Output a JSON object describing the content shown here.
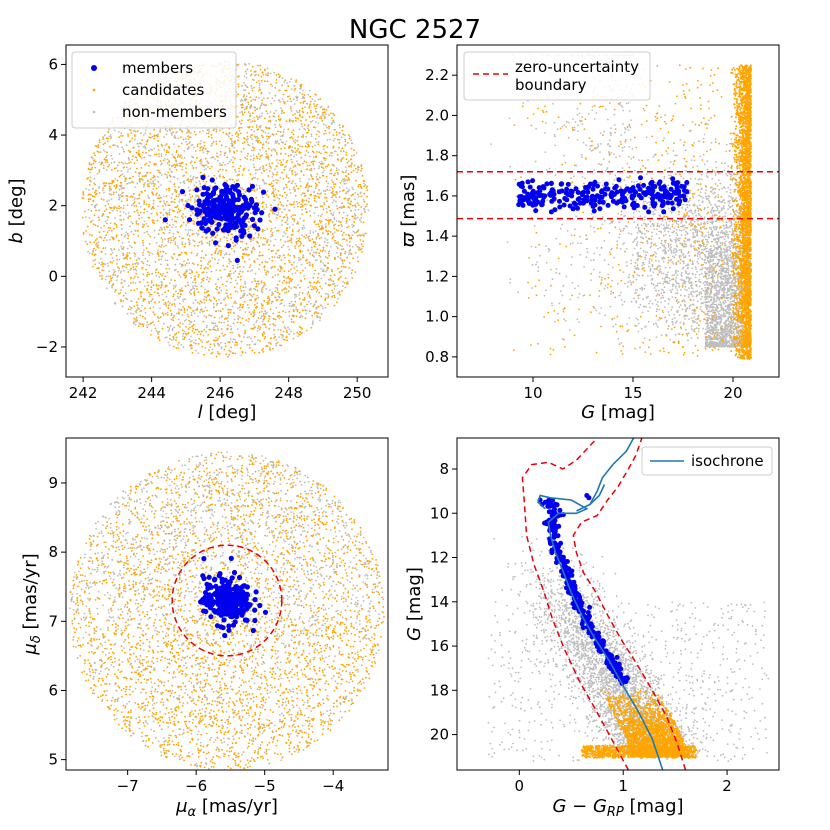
{
  "figure_title": "NGC 2527",
  "colors": {
    "members": "#0000ee",
    "candidates": "#ffa500",
    "non_members": "#bdbdbd",
    "boundary": "#e8000b",
    "isochrone": "#1f77b4"
  },
  "chart_data": [
    {
      "id": "position",
      "type": "scatter",
      "xlabel": "l [deg]",
      "ylabel": "b [deg]",
      "xlim": [
        241.5,
        250.9
      ],
      "ylim": [
        -2.85,
        6.55
      ],
      "xticks": [
        242,
        244,
        246,
        248,
        250
      ],
      "yticks": [
        -2,
        0,
        2,
        4,
        6
      ],
      "ytick_labels": [
        "−2",
        "0",
        "2",
        "4",
        "6"
      ],
      "legend": {
        "position": "top-left",
        "entries": [
          "members",
          "candidates",
          "non-members"
        ]
      },
      "field_center": [
        246.15,
        1.9
      ],
      "field_radius_deg": 4.2,
      "members_center": [
        246.15,
        1.9
      ],
      "members_spread": [
        0.45,
        0.35
      ],
      "members_count": 230,
      "members_outliers": [
        [
          244.4,
          1.6
        ],
        [
          247.6,
          1.9
        ],
        [
          246.5,
          0.45
        ],
        [
          245.5,
          2.8
        ],
        [
          244.9,
          2.4
        ]
      ]
    },
    {
      "id": "parallax",
      "type": "scatter",
      "xlabel": "G [mag]",
      "ylabel": "ϖ [mas]",
      "xlim": [
        6.2,
        22.3
      ],
      "ylim": [
        0.7,
        2.35
      ],
      "xticks": [
        10,
        15,
        20
      ],
      "yticks": [
        0.8,
        1.0,
        1.2,
        1.4,
        1.6,
        1.8,
        2.0,
        2.2
      ],
      "ytick_labels": [
        "0.8",
        "1.0",
        "1.2",
        "1.4",
        "1.6",
        "1.8",
        "2.0",
        "2.2"
      ],
      "legend": {
        "position": "top-left",
        "entries": [
          "zero-uncertainty",
          "boundary"
        ]
      },
      "boundary_parallax": [
        1.72,
        1.487
      ],
      "members_g_range": [
        9.2,
        17.7
      ],
      "members_parallax_center": 1.6,
      "members_count": 260
    },
    {
      "id": "proper_motion",
      "type": "scatter",
      "xlabel": "μα [mas/yr]",
      "ylabel": "μδ [mas/yr]",
      "xlim": [
        -7.9,
        -3.2
      ],
      "ylim": [
        4.85,
        9.65
      ],
      "xticks": [
        -7,
        -6,
        -5,
        -4
      ],
      "xtick_labels": [
        "−7",
        "−6",
        "−5",
        "−4"
      ],
      "yticks": [
        5,
        6,
        7,
        8,
        9
      ],
      "ytick_labels": [
        "5",
        "6",
        "7",
        "8",
        "9"
      ],
      "field_center": [
        -5.55,
        7.15
      ],
      "field_radius": 2.3,
      "boundary_circle": {
        "center": [
          -5.55,
          7.3
        ],
        "radius": 0.8
      },
      "members_center": [
        -5.55,
        7.3
      ],
      "members_spread": [
        0.17,
        0.17
      ],
      "members_count": 260
    },
    {
      "id": "cmd",
      "type": "scatter",
      "xlabel": "G − G_RP [mag]",
      "ylabel": "G [mag]",
      "xlim": [
        -0.6,
        2.5
      ],
      "ylim": [
        21.6,
        6.6
      ],
      "xticks": [
        0,
        1,
        2
      ],
      "yticks": [
        8,
        10,
        12,
        14,
        16,
        18,
        20
      ],
      "ytick_labels": [
        "8",
        "10",
        "12",
        "14",
        "16",
        "18",
        "20"
      ],
      "legend": {
        "position": "top-right",
        "entries": [
          "isochrone"
        ]
      },
      "isochrone": [
        [
          0.25,
          9.8
        ],
        [
          0.18,
          9.5
        ],
        [
          0.2,
          9.2
        ],
        [
          0.3,
          9.3
        ],
        [
          0.5,
          9.4
        ],
        [
          0.65,
          9.8
        ],
        [
          0.55,
          10.0
        ],
        [
          0.38,
          10.0
        ],
        [
          0.28,
          10.4
        ],
        [
          0.3,
          11.0
        ],
        [
          0.35,
          11.8
        ],
        [
          0.42,
          12.6
        ],
        [
          0.5,
          13.6
        ],
        [
          0.6,
          14.6
        ],
        [
          0.72,
          15.6
        ],
        [
          0.87,
          16.7
        ],
        [
          1.0,
          17.8
        ],
        [
          1.15,
          19.0
        ],
        [
          1.28,
          20.2
        ],
        [
          1.38,
          21.6
        ]
      ],
      "isochrone_giant": [
        [
          0.55,
          9.9
        ],
        [
          0.68,
          9.6
        ],
        [
          0.75,
          9.0
        ],
        [
          0.8,
          8.4
        ],
        [
          0.9,
          7.8
        ],
        [
          1.03,
          7.2
        ],
        [
          1.1,
          6.6
        ]
      ],
      "isochrone_rgb": [
        [
          0.68,
          9.6
        ],
        [
          0.77,
          9.2
        ],
        [
          0.82,
          8.7
        ]
      ],
      "boundary_left": [
        [
          1.05,
          21.6
        ],
        [
          0.9,
          20.3
        ],
        [
          0.75,
          19.0
        ],
        [
          0.58,
          17.6
        ],
        [
          0.44,
          16.2
        ],
        [
          0.32,
          14.8
        ],
        [
          0.24,
          13.6
        ],
        [
          0.14,
          12.3
        ],
        [
          0.07,
          11.0
        ],
        [
          0.05,
          9.6
        ],
        [
          0.03,
          8.4
        ],
        [
          0.12,
          7.8
        ],
        [
          0.28,
          7.7
        ],
        [
          0.42,
          8.0
        ],
        [
          0.55,
          7.6
        ],
        [
          0.65,
          7.1
        ],
        [
          0.75,
          6.6
        ]
      ],
      "boundary_right": [
        [
          1.6,
          21.6
        ],
        [
          1.52,
          20.4
        ],
        [
          1.42,
          19.2
        ],
        [
          1.28,
          18.0
        ],
        [
          1.13,
          16.8
        ],
        [
          0.98,
          15.7
        ],
        [
          0.85,
          14.6
        ],
        [
          0.74,
          13.6
        ],
        [
          0.62,
          12.7
        ],
        [
          0.55,
          11.8
        ],
        [
          0.52,
          11.0
        ],
        [
          0.6,
          10.4
        ],
        [
          0.75,
          10.1
        ],
        [
          0.85,
          9.4
        ],
        [
          0.95,
          8.8
        ],
        [
          1.05,
          8.0
        ],
        [
          1.12,
          7.4
        ],
        [
          1.18,
          6.6
        ]
      ],
      "members_g_range": [
        9.4,
        17.7
      ],
      "members_count": 260
    }
  ]
}
